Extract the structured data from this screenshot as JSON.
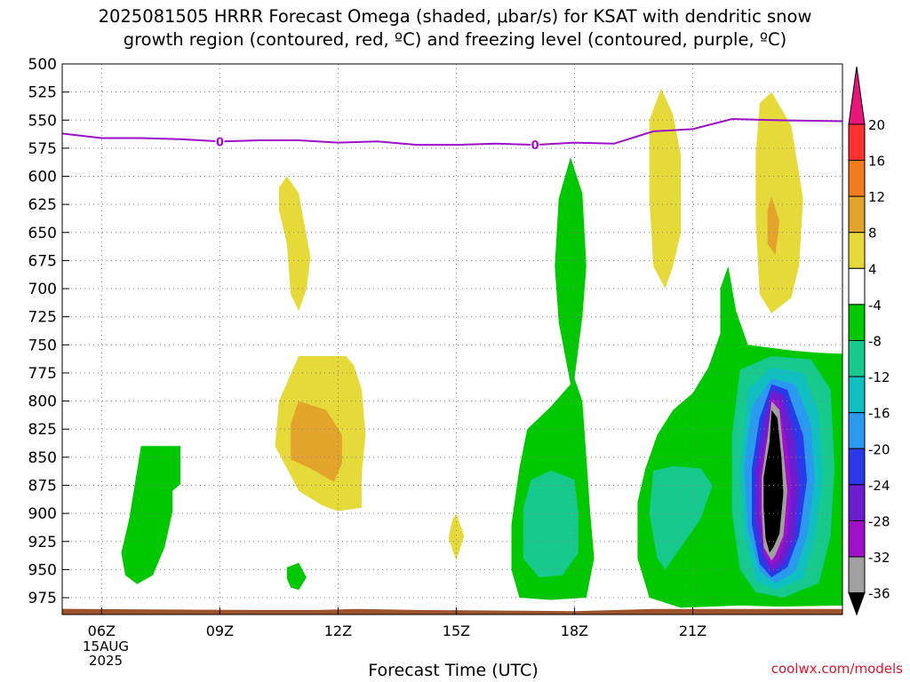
{
  "title_lines": [
    "2025081505 HRRR Forecast Omega (shaded, μbar/s) for KSAT with dendritic snow",
    "growth region (contoured, red, ºC) and freezing level (contoured, purple, ºC)"
  ],
  "credit": "coolwx.com/models",
  "date_label": [
    "15AUG",
    "2025"
  ],
  "colors": {
    "freezing_level": "#9b10c8",
    "ground": "#a0522d",
    "grid": "#808080"
  },
  "chart_data": {
    "type": "heatmap",
    "title": "2025081505 HRRR Forecast Omega (shaded, μbar/s) for KSAT with dendritic snow growth region (contoured, red, ºC) and freezing level (contoured, purple, ºC)",
    "xlabel": "Forecast Time (UTC)",
    "ylabel": "",
    "x_unit": "hour UTC (2025-08-15)",
    "xlim": [
      5.0,
      24.8
    ],
    "y_unit": "hPa",
    "ylim": [
      500,
      990
    ],
    "y_ticks": [
      500,
      525,
      550,
      575,
      600,
      625,
      650,
      675,
      700,
      725,
      750,
      775,
      800,
      825,
      850,
      875,
      900,
      925,
      950,
      975
    ],
    "x_ticks": [
      {
        "value": 6,
        "label": "06Z"
      },
      {
        "value": 9,
        "label": "09Z"
      },
      {
        "value": 12,
        "label": "12Z"
      },
      {
        "value": 15,
        "label": "15Z"
      },
      {
        "value": 18,
        "label": "18Z"
      },
      {
        "value": 21,
        "label": "21Z"
      }
    ],
    "grid": true,
    "colorbar": {
      "position": "right",
      "ticks": [
        20,
        16,
        12,
        8,
        4,
        -4,
        -8,
        -12,
        -16,
        -20,
        -24,
        -28,
        -32,
        -36
      ],
      "bins": [
        {
          "from": 20,
          "to": 24,
          "color": "#e8157a"
        },
        {
          "from": 16,
          "to": 20,
          "color": "#ff3030"
        },
        {
          "from": 12,
          "to": 16,
          "color": "#f07c1e"
        },
        {
          "from": 8,
          "to": 12,
          "color": "#e2a42a"
        },
        {
          "from": 4,
          "to": 8,
          "color": "#e6d93a"
        },
        {
          "from": -4,
          "to": 4,
          "color": "#ffffff"
        },
        {
          "from": -8,
          "to": -4,
          "color": "#00c800"
        },
        {
          "from": -12,
          "to": -8,
          "color": "#17c98d"
        },
        {
          "from": -16,
          "to": -12,
          "color": "#10c0c0"
        },
        {
          "from": -20,
          "to": -16,
          "color": "#2a9af0"
        },
        {
          "from": -24,
          "to": -20,
          "color": "#2a3ae8"
        },
        {
          "from": -28,
          "to": -24,
          "color": "#6a1ed0"
        },
        {
          "from": -32,
          "to": -28,
          "color": "#a010c8"
        },
        {
          "from": -36,
          "to": -32,
          "color": "#a0a0a0"
        },
        {
          "from": -40,
          "to": -36,
          "color": "#000000"
        }
      ]
    },
    "freezing_level": {
      "label": "0",
      "points": [
        [
          5.0,
          562
        ],
        [
          6.0,
          566
        ],
        [
          7.0,
          566
        ],
        [
          8.0,
          567
        ],
        [
          9.0,
          569
        ],
        [
          10.0,
          568
        ],
        [
          11.0,
          568
        ],
        [
          12.0,
          570
        ],
        [
          13.0,
          569
        ],
        [
          14.0,
          572
        ],
        [
          15.0,
          572
        ],
        [
          16.0,
          571
        ],
        [
          17.0,
          572
        ],
        [
          18.0,
          570
        ],
        [
          19.0,
          571
        ],
        [
          20.0,
          560
        ],
        [
          21.0,
          558
        ],
        [
          22.0,
          549
        ],
        [
          23.0,
          550
        ],
        [
          24.8,
          551
        ]
      ],
      "label_positions": [
        [
          9.0,
          569
        ],
        [
          17.0,
          572
        ]
      ]
    },
    "ground_level": {
      "points": [
        [
          5.0,
          985
        ],
        [
          10.0,
          986
        ],
        [
          11.5,
          986
        ],
        [
          12.5,
          985
        ],
        [
          14.0,
          986
        ],
        [
          18.0,
          987
        ],
        [
          20.0,
          985
        ],
        [
          22.0,
          985
        ],
        [
          24.8,
          985
        ]
      ]
    },
    "omega_regions": [
      {
        "level": -4,
        "points": [
          [
            7.0,
            840
          ],
          [
            8.0,
            840
          ],
          [
            8.0,
            874
          ],
          [
            7.8,
            880
          ],
          [
            7.8,
            898
          ],
          [
            7.6,
            930
          ],
          [
            7.3,
            955
          ],
          [
            6.9,
            963
          ],
          [
            6.6,
            955
          ],
          [
            6.5,
            935
          ],
          [
            6.7,
            905
          ]
        ]
      },
      {
        "level": -4,
        "points": [
          [
            10.7,
            948
          ],
          [
            11.0,
            944
          ],
          [
            11.2,
            957
          ],
          [
            11.0,
            968
          ],
          [
            10.8,
            966
          ],
          [
            10.7,
            958
          ]
        ]
      },
      {
        "level": 4,
        "points": [
          [
            10.5,
            610
          ],
          [
            10.7,
            600
          ],
          [
            11.0,
            615
          ],
          [
            11.3,
            672
          ],
          [
            11.2,
            700
          ],
          [
            11.0,
            720
          ],
          [
            10.8,
            705
          ],
          [
            10.7,
            660
          ],
          [
            10.5,
            630
          ]
        ]
      },
      {
        "level": 4,
        "points": [
          [
            11.0,
            760
          ],
          [
            12.2,
            760
          ],
          [
            12.4,
            768
          ],
          [
            12.6,
            790
          ],
          [
            12.7,
            830
          ],
          [
            12.6,
            865
          ],
          [
            12.6,
            895
          ],
          [
            12.0,
            898
          ],
          [
            11.6,
            893
          ],
          [
            11.0,
            880
          ],
          [
            10.7,
            860
          ],
          [
            10.4,
            840
          ],
          [
            10.5,
            800
          ]
        ]
      },
      {
        "level": 8,
        "points": [
          [
            11.0,
            800
          ],
          [
            11.7,
            808
          ],
          [
            12.1,
            830
          ],
          [
            12.1,
            855
          ],
          [
            11.9,
            872
          ],
          [
            11.3,
            860
          ],
          [
            10.8,
            852
          ],
          [
            10.8,
            820
          ]
        ]
      },
      {
        "level": 4,
        "points": [
          [
            14.9,
            906
          ],
          [
            15.0,
            900
          ],
          [
            15.2,
            920
          ],
          [
            15.0,
            942
          ],
          [
            14.8,
            922
          ]
        ]
      },
      {
        "level": -4,
        "points": [
          [
            17.9,
            583
          ],
          [
            18.2,
            615
          ],
          [
            18.3,
            680
          ],
          [
            18.2,
            725
          ],
          [
            18.0,
            780
          ],
          [
            18.2,
            800
          ],
          [
            18.3,
            850
          ],
          [
            18.4,
            900
          ],
          [
            18.5,
            940
          ],
          [
            18.3,
            975
          ],
          [
            17.4,
            977
          ],
          [
            16.6,
            975
          ],
          [
            16.4,
            950
          ],
          [
            16.4,
            910
          ],
          [
            16.6,
            860
          ],
          [
            16.8,
            825
          ],
          [
            17.4,
            805
          ],
          [
            17.9,
            785
          ],
          [
            17.6,
            730
          ],
          [
            17.5,
            680
          ],
          [
            17.6,
            620
          ]
        ]
      },
      {
        "level": -8,
        "points": [
          [
            16.9,
            870
          ],
          [
            17.4,
            862
          ],
          [
            18.0,
            870
          ],
          [
            18.1,
            900
          ],
          [
            18.1,
            935
          ],
          [
            17.7,
            955
          ],
          [
            17.1,
            957
          ],
          [
            16.7,
            940
          ],
          [
            16.7,
            895
          ]
        ]
      },
      {
        "level": 4,
        "points": [
          [
            19.9,
            550
          ],
          [
            20.2,
            522
          ],
          [
            20.5,
            545
          ],
          [
            20.7,
            582
          ],
          [
            20.7,
            650
          ],
          [
            20.5,
            680
          ],
          [
            20.3,
            700
          ],
          [
            20.0,
            680
          ],
          [
            19.9,
            620
          ]
        ]
      },
      {
        "level": 4,
        "points": [
          [
            22.7,
            535
          ],
          [
            23.0,
            525
          ],
          [
            23.5,
            555
          ],
          [
            23.8,
            620
          ],
          [
            23.7,
            680
          ],
          [
            23.5,
            708
          ],
          [
            23.0,
            722
          ],
          [
            22.7,
            705
          ],
          [
            22.6,
            640
          ],
          [
            22.6,
            580
          ]
        ]
      },
      {
        "level": 8,
        "points": [
          [
            23.0,
            618
          ],
          [
            23.2,
            640
          ],
          [
            23.1,
            670
          ],
          [
            22.9,
            660
          ],
          [
            22.9,
            630
          ]
        ]
      },
      {
        "level": -4,
        "points": [
          [
            21.9,
            680
          ],
          [
            22.1,
            720
          ],
          [
            22.4,
            750
          ],
          [
            23.5,
            755
          ],
          [
            24.2,
            757
          ],
          [
            24.8,
            758
          ],
          [
            24.8,
            982
          ],
          [
            23.2,
            983
          ],
          [
            22.2,
            982
          ],
          [
            20.7,
            984
          ],
          [
            19.9,
            975
          ],
          [
            19.6,
            940
          ],
          [
            19.6,
            890
          ],
          [
            19.8,
            860
          ],
          [
            20.1,
            830
          ],
          [
            20.5,
            808
          ],
          [
            21.0,
            793
          ],
          [
            21.4,
            770
          ],
          [
            21.7,
            740
          ],
          [
            21.7,
            700
          ]
        ]
      },
      {
        "level": -8,
        "points": [
          [
            20.0,
            862
          ],
          [
            20.5,
            858
          ],
          [
            21.2,
            860
          ],
          [
            21.5,
            875
          ],
          [
            21.2,
            905
          ],
          [
            20.7,
            930
          ],
          [
            20.3,
            950
          ],
          [
            20.1,
            940
          ],
          [
            19.9,
            900
          ]
        ]
      },
      {
        "level": -8,
        "points": [
          [
            22.2,
            772
          ],
          [
            23.0,
            760
          ],
          [
            24.0,
            763
          ],
          [
            24.5,
            790
          ],
          [
            24.6,
            860
          ],
          [
            24.5,
            920
          ],
          [
            24.2,
            962
          ],
          [
            23.3,
            975
          ],
          [
            22.6,
            970
          ],
          [
            22.2,
            950
          ],
          [
            22.0,
            900
          ],
          [
            22.0,
            830
          ]
        ]
      },
      {
        "level": -12,
        "points": [
          [
            22.4,
            790
          ],
          [
            23.0,
            770
          ],
          [
            23.8,
            775
          ],
          [
            24.2,
            810
          ],
          [
            24.3,
            870
          ],
          [
            24.1,
            920
          ],
          [
            23.8,
            958
          ],
          [
            23.1,
            968
          ],
          [
            22.6,
            960
          ],
          [
            22.3,
            920
          ],
          [
            22.2,
            860
          ]
        ]
      },
      {
        "level": -16,
        "points": [
          [
            22.5,
            805
          ],
          [
            23.0,
            780
          ],
          [
            23.6,
            785
          ],
          [
            24.0,
            820
          ],
          [
            24.1,
            870
          ],
          [
            23.9,
            920
          ],
          [
            23.6,
            952
          ],
          [
            23.1,
            962
          ],
          [
            22.7,
            952
          ],
          [
            22.4,
            915
          ],
          [
            22.3,
            860
          ]
        ]
      },
      {
        "level": -20,
        "points": [
          [
            22.7,
            815
          ],
          [
            23.0,
            785
          ],
          [
            23.4,
            790
          ],
          [
            23.8,
            830
          ],
          [
            23.9,
            870
          ],
          [
            23.7,
            920
          ],
          [
            23.4,
            948
          ],
          [
            23.0,
            957
          ],
          [
            22.7,
            945
          ],
          [
            22.5,
            910
          ],
          [
            22.5,
            860
          ]
        ]
      },
      {
        "level": -24,
        "points": [
          [
            22.8,
            820
          ],
          [
            23.0,
            790
          ],
          [
            23.3,
            795
          ],
          [
            23.6,
            835
          ],
          [
            23.7,
            875
          ],
          [
            23.6,
            920
          ],
          [
            23.3,
            945
          ],
          [
            23.0,
            952
          ],
          [
            22.8,
            940
          ],
          [
            22.6,
            905
          ],
          [
            22.6,
            860
          ]
        ]
      },
      {
        "level": -28,
        "points": [
          [
            22.9,
            827
          ],
          [
            23.0,
            797
          ],
          [
            23.2,
            802
          ],
          [
            23.4,
            840
          ],
          [
            23.5,
            878
          ],
          [
            23.4,
            920
          ],
          [
            23.2,
            940
          ],
          [
            23.0,
            946
          ],
          [
            22.8,
            935
          ],
          [
            22.7,
            900
          ],
          [
            22.7,
            865
          ]
        ]
      },
      {
        "level": -32,
        "points": [
          [
            22.9,
            832
          ],
          [
            23.0,
            800
          ],
          [
            23.2,
            808
          ],
          [
            23.3,
            845
          ],
          [
            23.4,
            880
          ],
          [
            23.3,
            920
          ],
          [
            23.1,
            937
          ],
          [
            23.0,
            942
          ],
          [
            22.8,
            930
          ],
          [
            22.75,
            898
          ],
          [
            22.75,
            868
          ]
        ]
      },
      {
        "level": -36,
        "points": [
          [
            22.95,
            836
          ],
          [
            23.0,
            808
          ],
          [
            23.15,
            815
          ],
          [
            23.25,
            850
          ],
          [
            23.3,
            882
          ],
          [
            23.2,
            918
          ],
          [
            23.05,
            930
          ],
          [
            22.95,
            935
          ],
          [
            22.85,
            922
          ],
          [
            22.8,
            895
          ],
          [
            22.8,
            868
          ]
        ]
      }
    ]
  }
}
